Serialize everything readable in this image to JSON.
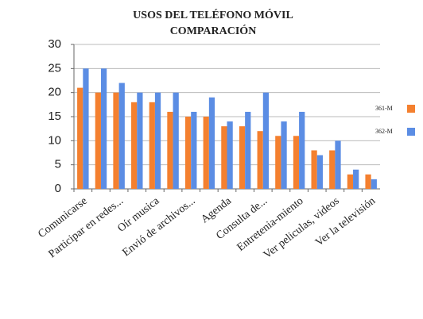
{
  "chart_data": {
    "type": "bar",
    "title": [
      "USOS DEL TELÉFONO MÓVIL",
      "COMPARACIÓN"
    ],
    "categories": [
      "Comunicarse",
      null,
      "Participar en redes...",
      null,
      "Oír musica",
      null,
      "Envió de archivos...",
      null,
      "Agenda",
      null,
      "Consulta de...",
      null,
      "Entretenia-miento",
      null,
      "Ver peliculas, videos",
      null,
      "Ver la televisión"
    ],
    "series": [
      {
        "name": "361-M",
        "color": "#f4802f",
        "values": [
          21,
          20,
          20,
          18,
          18,
          16,
          15,
          15,
          13,
          13,
          12,
          11,
          11,
          8,
          8,
          3,
          3
        ]
      },
      {
        "name": "362-M",
        "color": "#5b8de4",
        "values": [
          25,
          25,
          22,
          20,
          20,
          20,
          16,
          19,
          14,
          16,
          20,
          14,
          16,
          7,
          10,
          4,
          2
        ]
      }
    ],
    "ylim": [
      0,
      30
    ],
    "yticks": [
      0,
      5,
      10,
      15,
      20,
      25,
      30
    ],
    "grid": true,
    "legend": "right"
  }
}
